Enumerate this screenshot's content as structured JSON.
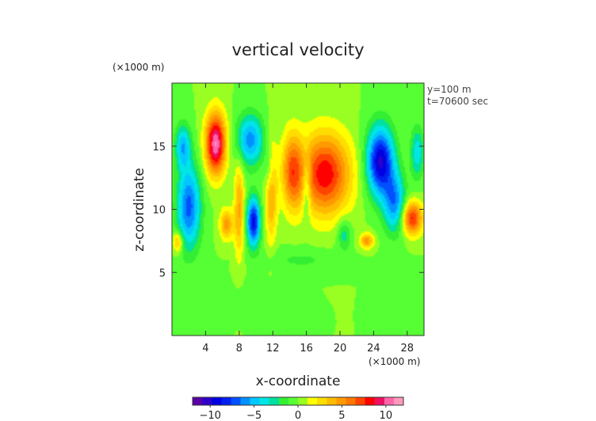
{
  "chart_data": {
    "type": "heatmap",
    "title": "vertical velocity",
    "xlabel": "x-coordinate",
    "ylabel": "z-coordinate",
    "x_unit": "(×1000 m)",
    "y_unit": "(×1000 m)",
    "annotations": [
      "y=100 m",
      "t=70600 sec"
    ],
    "xlim": [
      0,
      30
    ],
    "ylim": [
      0,
      20
    ],
    "x_ticks": [
      4,
      8,
      12,
      16,
      20,
      24,
      28
    ],
    "y_ticks": [
      5,
      10,
      15
    ],
    "colorbar": {
      "range": [
        -12,
        12
      ],
      "ticks": [
        -10,
        -5,
        0,
        5,
        10
      ],
      "colors": [
        "#5a00a8",
        "#2e00c8",
        "#0000e0",
        "#0020f0",
        "#0050ff",
        "#0090ff",
        "#00c8ff",
        "#00e6e6",
        "#00e0a0",
        "#33ee33",
        "#55ff33",
        "#99ff22",
        "#ffff00",
        "#ffdd00",
        "#ffbb00",
        "#ff9900",
        "#ff7700",
        "#ff4400",
        "#ff0000",
        "#ee1060",
        "#ff66aa",
        "#ff99bb"
      ]
    },
    "grid": false,
    "features": [
      {
        "x": 5.2,
        "z": 15.2,
        "sx": 1.2,
        "sz": 2.4,
        "value": 11
      },
      {
        "x": 18.2,
        "z": 12.8,
        "sx": 3.0,
        "sz": 3.2,
        "value": 8.5
      },
      {
        "x": 14.3,
        "z": 13.0,
        "sx": 1.2,
        "sz": 3.0,
        "value": 6
      },
      {
        "x": 11.8,
        "z": 11.5,
        "sx": 0.7,
        "sz": 3.8,
        "value": 5
      },
      {
        "x": 8.0,
        "z": 10.0,
        "sx": 0.6,
        "sz": 3.8,
        "value": 4.5
      },
      {
        "x": 6.5,
        "z": 8.8,
        "sx": 0.8,
        "sz": 1.2,
        "value": 5
      },
      {
        "x": 28.6,
        "z": 9.3,
        "sx": 1.2,
        "sz": 1.3,
        "value": 8
      },
      {
        "x": 23.2,
        "z": 7.5,
        "sx": 0.8,
        "sz": 0.6,
        "value": 5
      },
      {
        "x": 0.7,
        "z": 7.4,
        "sx": 0.6,
        "sz": 0.8,
        "value": 4.5
      },
      {
        "x": 2.0,
        "z": 10.2,
        "sx": 1.4,
        "sz": 3.3,
        "value": -7
      },
      {
        "x": 1.3,
        "z": 15.0,
        "sx": 0.9,
        "sz": 1.7,
        "value": -5
      },
      {
        "x": 9.7,
        "z": 9.0,
        "sx": 0.8,
        "sz": 1.9,
        "value": -9
      },
      {
        "x": 9.3,
        "z": 15.5,
        "sx": 1.6,
        "sz": 2.0,
        "value": -6
      },
      {
        "x": 24.8,
        "z": 13.8,
        "sx": 1.6,
        "sz": 2.7,
        "value": -10
      },
      {
        "x": 26.5,
        "z": 10.5,
        "sx": 1.3,
        "sz": 2.3,
        "value": -6
      },
      {
        "x": 29.2,
        "z": 14.5,
        "sx": 0.8,
        "sz": 2.0,
        "value": -4
      },
      {
        "x": 11.6,
        "z": 13.0,
        "sx": 0.6,
        "sz": 1.8,
        "value": -3
      },
      {
        "x": 16.0,
        "z": 11.8,
        "sx": 0.5,
        "sz": 2.5,
        "value": -3.5
      },
      {
        "x": 20.5,
        "z": 8.0,
        "sx": 0.8,
        "sz": 1.2,
        "value": -3
      },
      {
        "x": 15.5,
        "z": 6.0,
        "sx": 4.5,
        "sz": 0.9,
        "value": -1.3
      },
      {
        "x": 10.5,
        "z": 3.0,
        "sx": 3.0,
        "sz": 1.3,
        "value": -0.8
      },
      {
        "x": 27.5,
        "z": 4.0,
        "sx": 2.0,
        "sz": 1.5,
        "value": -0.9
      }
    ]
  }
}
